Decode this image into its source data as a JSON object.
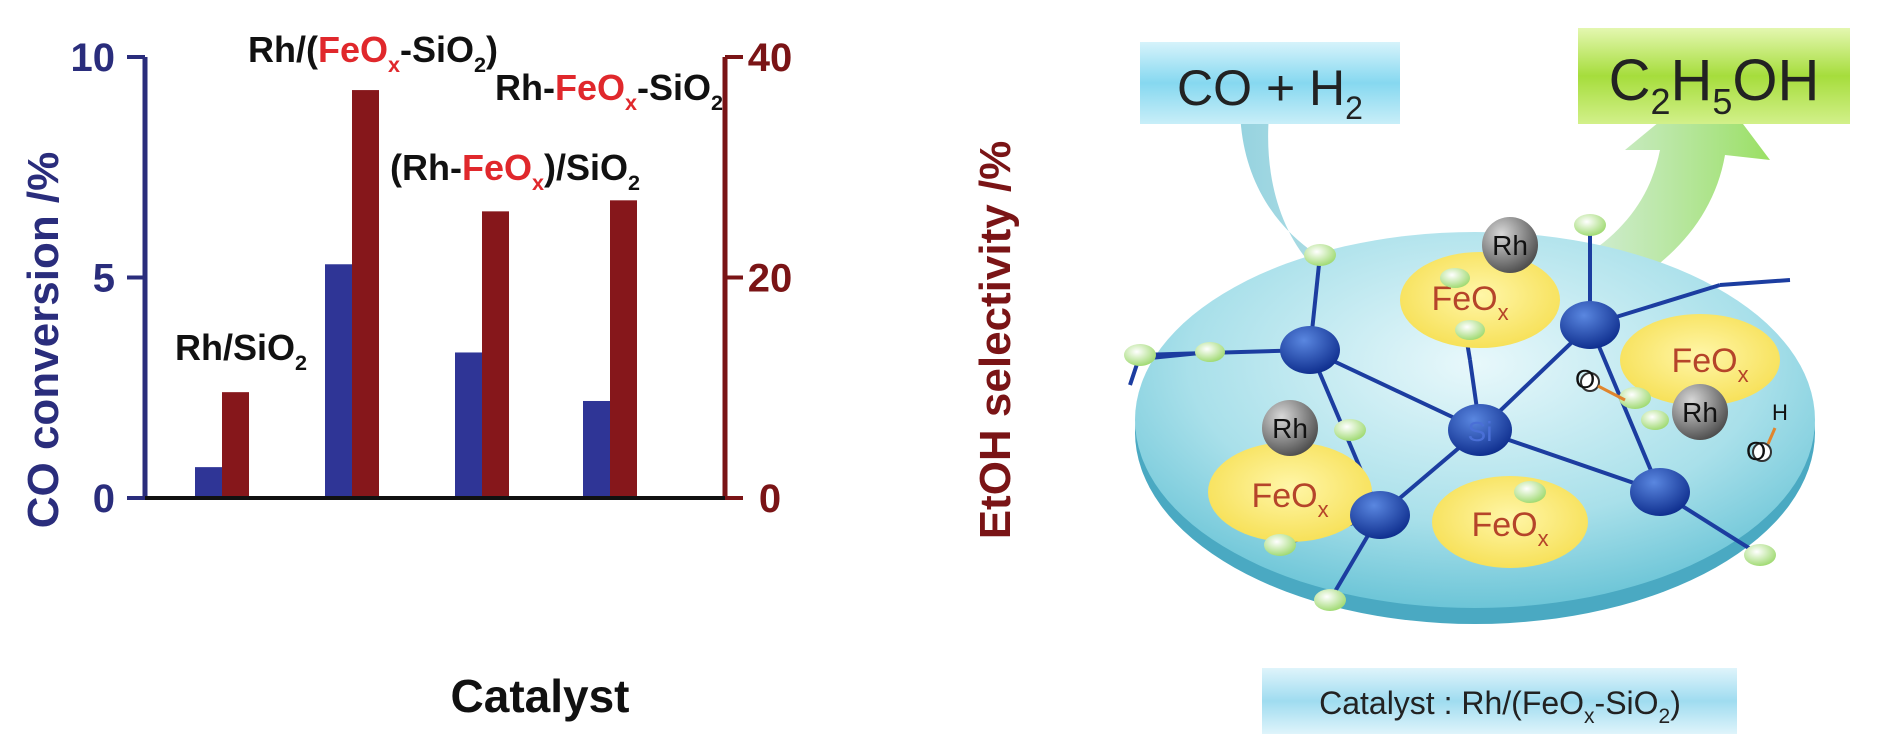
{
  "chart_data": {
    "type": "bar",
    "x_axis_title": "Catalyst",
    "left_axis": {
      "title": "CO conversion /%",
      "ylim": [
        0,
        10
      ],
      "ticks": [
        "0",
        "5",
        "10"
      ],
      "tick_values": [
        0,
        5,
        10
      ],
      "color": "#2a2d7c"
    },
    "right_axis": {
      "title": "EtOH selectivity /%",
      "ylim": [
        0,
        40
      ],
      "ticks": [
        "0",
        "20",
        "40"
      ],
      "tick_values": [
        0,
        20,
        40
      ],
      "color": "#7a1416"
    },
    "categories": [
      {
        "prefix": "Rh/SiO",
        "sub1": "2",
        "red": "",
        "redsub": "",
        "mid": "",
        "sub2": "",
        "tail": ""
      },
      {
        "prefix": "Rh/(",
        "sub1": "",
        "red": "FeO",
        "redsub": "x",
        "mid": "-SiO",
        "sub2": "2",
        "tail": ")"
      },
      {
        "prefix": "(Rh-",
        "sub1": "",
        "red": "FeO",
        "redsub": "x",
        "mid": ")/SiO",
        "sub2": "2",
        "tail": ""
      },
      {
        "prefix": "Rh-",
        "sub1": "",
        "red": "FeO",
        "redsub": "x",
        "mid": "-SiO",
        "sub2": "2",
        "tail": ""
      }
    ],
    "series": [
      {
        "name": "CO conversion",
        "axis": "left",
        "color": "#2f3596",
        "values": [
          0.7,
          5.3,
          3.3,
          2.2
        ]
      },
      {
        "name": "EtOH selectivity",
        "axis": "right",
        "color": "#86171b",
        "values": [
          9.6,
          37,
          26,
          27
        ]
      }
    ]
  },
  "scheme": {
    "reactant": {
      "main": "CO + H",
      "sub": "2"
    },
    "product": {
      "p1": "C",
      "s1": "2",
      "p2": "H",
      "s2": "5",
      "p3": "OH"
    },
    "caption": {
      "prefix": "Catalyst : Rh/(FeO",
      "sub1": "x",
      "mid": "-SiO",
      "sub2": "2",
      "tail": ")"
    },
    "atoms": {
      "rh": "Rh",
      "si": "Si",
      "o": "O",
      "h": "H",
      "feo": "FeO",
      "feo_sub": "x"
    }
  }
}
